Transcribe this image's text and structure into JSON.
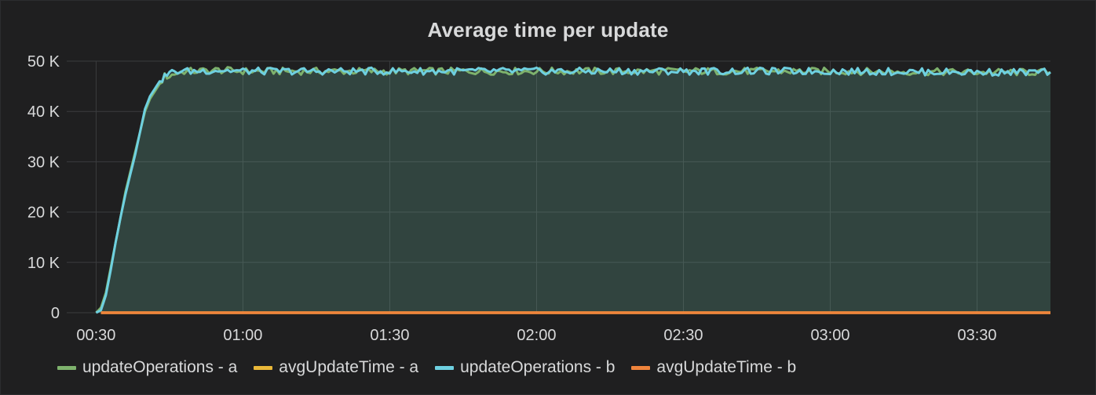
{
  "panel": {
    "title": "Average time per update"
  },
  "chart_data": {
    "type": "line",
    "title": "Average time per update",
    "xlabel": "",
    "ylabel": "",
    "x_axis": {
      "unit": "time",
      "range": [
        "00:24",
        "03:45"
      ],
      "ticks": [
        "00:30",
        "01:00",
        "01:30",
        "02:00",
        "02:30",
        "03:00",
        "03:30"
      ]
    },
    "y_axis": {
      "range": [
        0,
        50000
      ],
      "ticks": [
        0,
        10000,
        20000,
        30000,
        40000,
        50000
      ],
      "tick_labels": [
        "0",
        "10 K",
        "20 K",
        "30 K",
        "40 K",
        "50 K"
      ]
    },
    "grid": true,
    "legend_placement": "bottom-left",
    "series": [
      {
        "name": "updateOperations - a",
        "color": "#7eb26d",
        "fill": true,
        "points": [
          [
            "00:30",
            0
          ],
          [
            "00:31",
            1000
          ],
          [
            "00:32",
            4000
          ],
          [
            "00:33",
            9000
          ],
          [
            "00:34",
            14000
          ],
          [
            "00:35",
            19000
          ],
          [
            "00:36",
            24000
          ],
          [
            "00:37",
            28000
          ],
          [
            "00:38",
            32000
          ],
          [
            "00:39",
            36000
          ],
          [
            "00:40",
            40000
          ],
          [
            "00:41",
            42500
          ],
          [
            "00:42",
            44000
          ],
          [
            "00:43",
            45500
          ],
          [
            "00:44",
            47000
          ],
          [
            "00:45",
            47000
          ],
          [
            "00:46",
            47500
          ],
          [
            "00:48",
            48000
          ],
          [
            "00:50",
            48000
          ],
          [
            "00:55",
            48200
          ],
          [
            "01:00",
            48000
          ],
          [
            "01:30",
            48000
          ],
          [
            "02:00",
            48000
          ],
          [
            "02:30",
            48000
          ],
          [
            "03:00",
            48000
          ],
          [
            "03:30",
            47800
          ],
          [
            "03:45",
            47800
          ]
        ]
      },
      {
        "name": "avgUpdateTime - a",
        "color": "#eab839",
        "fill": false,
        "points": [
          [
            "00:31",
            0
          ],
          [
            "03:45",
            0
          ]
        ]
      },
      {
        "name": "updateOperations - b",
        "color": "#6ed0e0",
        "fill": true,
        "points": [
          [
            "00:30",
            0
          ],
          [
            "00:31",
            500
          ],
          [
            "00:32",
            3500
          ],
          [
            "00:33",
            8500
          ],
          [
            "00:34",
            14000
          ],
          [
            "00:35",
            19000
          ],
          [
            "00:36",
            23500
          ],
          [
            "00:37",
            27500
          ],
          [
            "00:38",
            31500
          ],
          [
            "00:39",
            36000
          ],
          [
            "00:40",
            40500
          ],
          [
            "00:41",
            43000
          ],
          [
            "00:42",
            44500
          ],
          [
            "00:43",
            46000
          ],
          [
            "00:44",
            47000
          ],
          [
            "00:45",
            47500
          ],
          [
            "00:46",
            48000
          ],
          [
            "00:48",
            48000
          ],
          [
            "00:50",
            48000
          ],
          [
            "00:55",
            48200
          ],
          [
            "01:00",
            48000
          ],
          [
            "01:30",
            48000
          ],
          [
            "02:00",
            48000
          ],
          [
            "02:30",
            48000
          ],
          [
            "03:00",
            48000
          ],
          [
            "03:30",
            47800
          ],
          [
            "03:45",
            47800
          ]
        ]
      },
      {
        "name": "avgUpdateTime - b",
        "color": "#ef843c",
        "fill": false,
        "points": [
          [
            "00:31",
            0
          ],
          [
            "03:45",
            0
          ]
        ]
      }
    ]
  }
}
